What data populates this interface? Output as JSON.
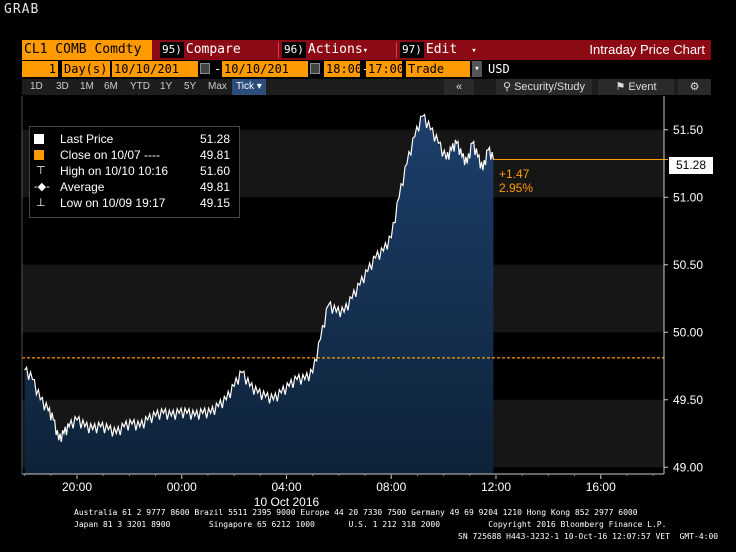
{
  "screen_label": "GRAB",
  "toolbar": {
    "ticker": "CL1 COMB Comdty",
    "compare_num": "95)",
    "compare_label": "Compare",
    "actions_num": "96)",
    "actions_label": "Actions",
    "edit_num": "97)",
    "edit_label": "Edit",
    "chart_title": "Intraday Price Chart"
  },
  "range": {
    "count": "1",
    "unit": "Day(s)",
    "start_date": "10/10/201",
    "end_date": "10/10/201",
    "start_time": "18:00",
    "end_time": "17:00",
    "mode": "Trade",
    "currency": "USD"
  },
  "periods": [
    "1D",
    "3D",
    "1M",
    "6M",
    "YTD",
    "1Y",
    "5Y",
    "Max"
  ],
  "tick_label": "Tick ▾",
  "tools": {
    "back": "«",
    "security_study": "Security/Study",
    "event": "Event",
    "settings_icon": "gear-icon"
  },
  "legend": [
    {
      "label": "Last Price",
      "value": "51.28",
      "sym": "white-box"
    },
    {
      "label": "Close on 10/07 ----",
      "value": "49.81",
      "sym": "orange-box"
    },
    {
      "label": "High on 10/10 10:16",
      "value": "51.60",
      "sym": "high-marker"
    },
    {
      "label": "Average",
      "value": "49.81",
      "sym": "avg-marker"
    },
    {
      "label": "Low on 10/09 19:17",
      "value": "49.15",
      "sym": "low-marker"
    }
  ],
  "annotation": {
    "change": "+1.47",
    "pct": "2.95%",
    "last": "51.28"
  },
  "colors": {
    "accent_orange": "#ff9a00",
    "bar_red": "#8b0a14",
    "fill_blue": "#1b3a60"
  },
  "chart_data": {
    "type": "area",
    "title": "",
    "xlabel": "10 Oct 2016",
    "ylabel": "",
    "x_ticks": [
      "20:00",
      "00:00",
      "04:00",
      "08:00",
      "12:00",
      "16:00"
    ],
    "y_ticks": [
      "49.00",
      "49.50",
      "50.00",
      "50.50",
      "51.00",
      "51.50"
    ],
    "ylim": [
      48.95,
      51.75
    ],
    "xlim_hours": [
      18.0,
      30.9
    ],
    "reference_line": {
      "name": "Close on 10/07",
      "value": 49.81
    },
    "series": [
      {
        "name": "Last Price",
        "x": [
          18.0,
          18.3,
          18.6,
          18.9,
          19.1,
          19.3,
          19.5,
          19.7,
          20.0,
          20.3,
          20.6,
          20.9,
          21.2,
          21.5,
          21.8,
          22.1,
          22.4,
          22.7,
          23.0,
          23.3,
          23.6,
          23.9,
          24.2,
          24.5,
          24.8,
          25.1,
          25.4,
          25.7,
          26.0,
          26.3,
          26.6,
          26.9,
          27.2,
          27.5,
          27.8,
          28.1,
          28.4,
          28.7,
          29.0,
          29.3,
          29.6,
          29.9,
          30.2,
          30.5,
          30.8,
          31.1,
          31.4,
          31.7,
          32.0,
          32.3,
          32.6,
          32.9,
          33.2,
          33.5,
          33.8,
          34.1,
          34.3,
          34.5,
          34.7,
          34.9,
          35.1,
          35.3,
          35.5,
          35.7,
          35.9
        ],
        "values": [
          49.72,
          49.65,
          49.5,
          49.42,
          49.35,
          49.2,
          49.25,
          49.3,
          49.35,
          49.3,
          49.28,
          49.3,
          49.28,
          49.25,
          49.3,
          49.32,
          49.3,
          49.35,
          49.38,
          49.4,
          49.38,
          49.4,
          49.4,
          49.38,
          49.4,
          49.4,
          49.45,
          49.5,
          49.6,
          49.7,
          49.6,
          49.55,
          49.52,
          49.5,
          49.55,
          49.6,
          49.65,
          49.65,
          49.7,
          49.95,
          50.2,
          50.15,
          50.15,
          50.25,
          50.35,
          50.45,
          50.55,
          50.6,
          50.7,
          51.0,
          51.25,
          51.45,
          51.6,
          51.5,
          51.4,
          51.28,
          51.35,
          51.4,
          51.3,
          51.25,
          51.4,
          51.3,
          51.2,
          51.35,
          51.28
        ]
      }
    ]
  },
  "footer": {
    "line1": "Australia 61 2 9777 8600 Brazil 5511 2395 9000 Europe 44 20 7330 7500 Germany 49 69 9204 1210 Hong Kong 852 2977 6000",
    "line2": "Japan 81 3 3201 8900        Singapore 65 6212 1000       U.S. 1 212 318 2000          Copyright 2016 Bloomberg Finance L.P.",
    "line3": "SN 725688 H443-3232-1 10-Oct-16 12:07:57 VET  GMT-4:00"
  }
}
